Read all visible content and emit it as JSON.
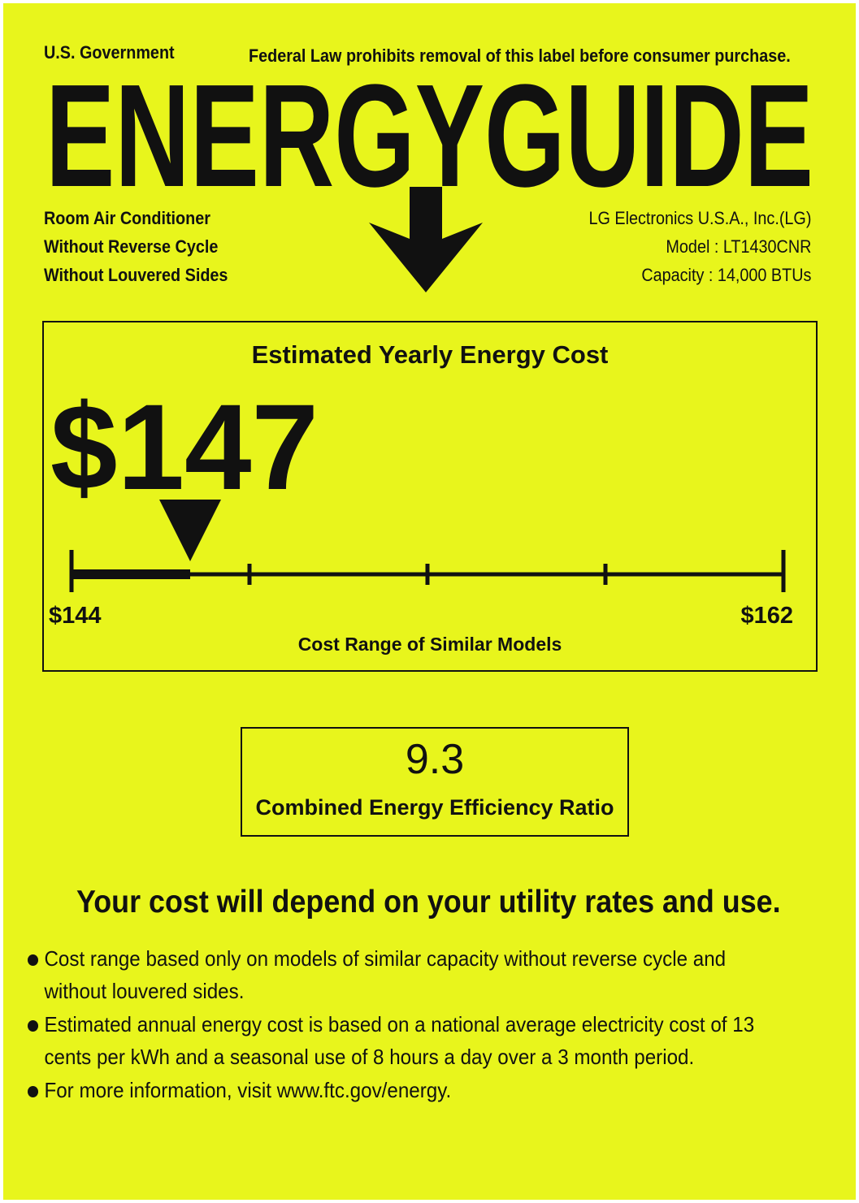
{
  "header": {
    "government": "U.S. Government",
    "federal_notice": "Federal Law prohibits removal of this label before consumer purchase.",
    "title": "ENERGYGUIDE"
  },
  "product": {
    "lines": [
      "Room Air Conditioner",
      "Without Reverse Cycle",
      "Without Louvered Sides"
    ]
  },
  "manufacturer": {
    "name": "LG Electronics U.S.A., Inc.(LG)",
    "model": "Model : LT1430CNR",
    "capacity": "Capacity : 14,000 BTUs"
  },
  "cost": {
    "heading": "Estimated Yearly Energy Cost",
    "value_label": "$147",
    "value": 147,
    "range_min": 144,
    "range_max": 162,
    "range_min_label": "$144",
    "range_max_label": "$162",
    "range_caption": "Cost Range of Similar Models"
  },
  "efficiency": {
    "value": "9.3",
    "label": "Combined Energy Efficiency Ratio"
  },
  "disclaimer": "Your cost will depend on your utility rates and use.",
  "bullets": [
    [
      "Cost range based only on models of similar capacity without reverse cycle and",
      "without louvered sides."
    ],
    [
      "Estimated annual energy cost is based on a national average electricity cost of 13",
      "cents per kWh and a seasonal use of 8 hours a day over a 3 month period."
    ],
    [
      "For more information, visit www.ftc.gov/energy."
    ]
  ],
  "colors": {
    "background": "#e8f51c",
    "ink": "#111111"
  }
}
